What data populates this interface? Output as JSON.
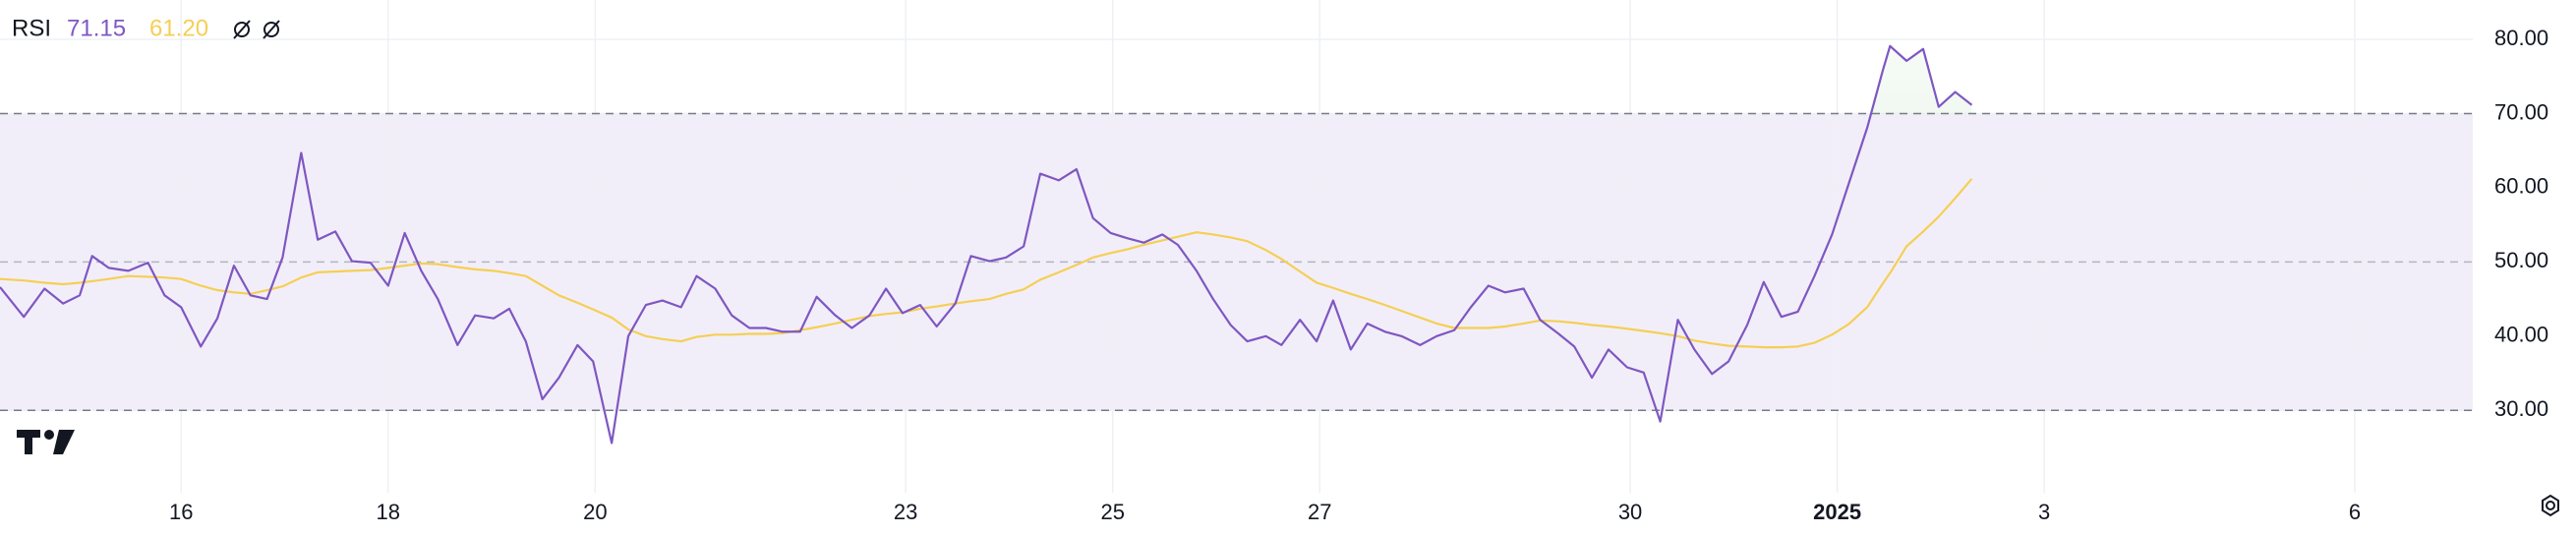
{
  "chart_data": {
    "type": "line",
    "title": "RSI",
    "x": [
      14.25,
      14.48,
      14.68,
      14.86,
      15.02,
      15.14,
      15.3,
      15.49,
      15.68,
      15.84,
      16.0,
      16.19,
      16.35,
      16.51,
      16.67,
      16.83,
      16.98,
      17.16,
      17.32,
      17.49,
      17.65,
      17.83,
      18.0,
      18.16,
      18.32,
      18.48,
      18.67,
      18.84,
      19.02,
      19.17,
      19.33,
      19.49,
      19.65,
      19.83,
      19.98,
      20.16,
      20.32,
      20.49,
      20.65,
      20.83,
      20.98,
      21.16,
      21.32,
      21.49,
      21.65,
      21.81,
      21.98,
      22.14,
      22.32,
      22.48,
      22.65,
      22.81,
      22.97,
      23.14,
      23.3,
      23.48,
      23.63,
      23.81,
      23.97,
      24.14,
      24.3,
      24.48,
      24.65,
      24.81,
      24.98,
      25.14,
      25.3,
      25.48,
      25.63,
      25.81,
      25.97,
      26.14,
      26.3,
      26.48,
      26.63,
      26.81,
      26.97,
      27.13,
      27.3,
      27.46,
      27.63,
      27.79,
      27.97,
      28.13,
      28.3,
      28.46,
      28.63,
      28.79,
      28.97,
      29.13,
      29.3,
      29.46,
      29.63,
      29.79,
      29.97,
      30.13,
      30.29,
      30.46,
      30.62,
      30.79,
      30.95,
      31.13,
      31.29,
      31.46,
      31.62,
      31.78,
      31.95,
      32.11,
      32.29,
      32.44,
      32.51,
      32.67,
      32.83,
      32.98,
      33.14,
      33.3
    ],
    "series": [
      {
        "color": "#7e57c2",
        "last_label": "71.15",
        "values": [
          46.6,
          42.6,
          46.4,
          44.4,
          45.5,
          50.8,
          49.2,
          48.8,
          49.9,
          45.5,
          43.9,
          38.6,
          42.4,
          49.5,
          45.5,
          45.0,
          50.6,
          64.7,
          53.0,
          54.1,
          50.1,
          49.9,
          46.8,
          53.9,
          48.8,
          45.0,
          38.8,
          42.8,
          42.4,
          43.7,
          39.3,
          31.5,
          34.4,
          38.8,
          36.6,
          25.6,
          40.0,
          44.2,
          44.8,
          43.9,
          48.1,
          46.4,
          42.8,
          41.1,
          41.1,
          40.6,
          40.6,
          45.3,
          42.8,
          41.1,
          42.8,
          46.4,
          43.1,
          44.2,
          41.3,
          44.4,
          50.8,
          50.1,
          50.6,
          52.1,
          61.9,
          61.0,
          62.5,
          55.9,
          53.9,
          53.2,
          52.6,
          53.7,
          52.3,
          48.8,
          45.0,
          41.5,
          39.3,
          40.0,
          38.8,
          42.2,
          39.3,
          44.8,
          38.2,
          41.7,
          40.6,
          40.0,
          38.8,
          40.0,
          40.8,
          43.9,
          46.8,
          45.9,
          46.4,
          42.2,
          40.4,
          38.6,
          34.4,
          38.2,
          35.8,
          35.1,
          28.5,
          42.2,
          38.2,
          34.9,
          36.6,
          41.5,
          47.3,
          42.6,
          43.3,
          48.1,
          53.7,
          60.5,
          68.1,
          75.8,
          79.1,
          77.1,
          78.7,
          70.9,
          72.9,
          71.15
        ]
      },
      {
        "color": "#f5cf55",
        "last_label": "61.20",
        "values": [
          47.7,
          47.5,
          47.2,
          47.0,
          47.2,
          47.4,
          47.7,
          48.1,
          48.0,
          47.9,
          47.7,
          46.8,
          46.2,
          45.9,
          45.7,
          46.2,
          46.7,
          47.9,
          48.6,
          48.7,
          48.8,
          48.9,
          49.2,
          49.5,
          49.8,
          49.7,
          49.3,
          49.0,
          48.8,
          48.5,
          48.1,
          46.8,
          45.5,
          44.5,
          43.6,
          42.5,
          40.9,
          40.0,
          39.6,
          39.3,
          39.9,
          40.2,
          40.2,
          40.3,
          40.3,
          40.4,
          40.8,
          41.2,
          41.7,
          42.2,
          42.7,
          43.0,
          43.2,
          43.7,
          44.0,
          44.4,
          44.7,
          45.0,
          45.7,
          46.3,
          47.6,
          48.6,
          49.6,
          50.6,
          51.2,
          51.7,
          52.3,
          52.9,
          53.4,
          54.0,
          53.7,
          53.3,
          52.8,
          51.6,
          50.4,
          48.7,
          47.2,
          46.5,
          45.7,
          45.0,
          44.2,
          43.4,
          42.5,
          41.7,
          41.1,
          41.1,
          41.1,
          41.3,
          41.7,
          42.1,
          42.0,
          41.8,
          41.5,
          41.3,
          41.0,
          40.7,
          40.4,
          40.0,
          39.4,
          39.0,
          38.7,
          38.6,
          38.5,
          38.5,
          38.6,
          39.1,
          40.2,
          41.6,
          43.9,
          47.1,
          48.5,
          52.1,
          54.1,
          56.1,
          58.6,
          61.2
        ]
      }
    ],
    "bands": {
      "upper": 70,
      "middle": 50,
      "lower": 30
    },
    "xlim": [
      14.25,
      38.14
    ],
    "xticks": [
      16,
      18,
      20,
      23,
      25,
      27,
      30,
      {
        "value": 32,
        "label": "2025"
      },
      {
        "value": 34,
        "label": "3"
      },
      {
        "value": 37,
        "label": "6"
      }
    ],
    "ylim": [
      18.9,
      85.3
    ],
    "yticks": [
      {
        "value": 30,
        "label": "30.00"
      },
      {
        "value": 40,
        "label": "40.00"
      },
      {
        "value": 50,
        "label": "50.00"
      },
      {
        "value": 60,
        "label": "60.00"
      },
      {
        "value": 70,
        "label": "70.00"
      },
      {
        "value": 80,
        "label": "80.00"
      }
    ],
    "grid": true
  }
}
